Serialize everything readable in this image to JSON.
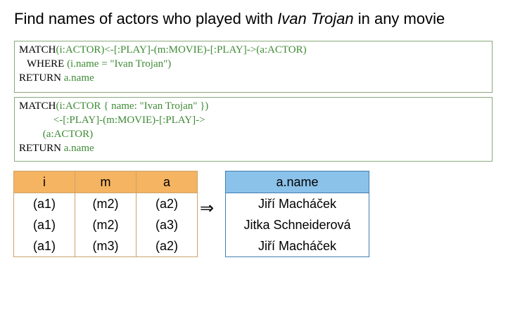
{
  "title": {
    "prefix": "Find names of actors who played with ",
    "name": "Ivan Trojan",
    "suffix": " in any movie"
  },
  "query1": {
    "l1_kw": "MATCH",
    "l1_rest": "(i:ACTOR)<-[:PLAY]-(m:MOVIE)-[:PLAY]->(a:ACTOR)",
    "l2_kw": "   WHERE",
    "l2_rest": " (i.name = \"Ivan Trojan\")",
    "l3_kw": "RETURN",
    "l3_rest": " a.name"
  },
  "query2": {
    "l1_kw": "MATCH",
    "l1_rest": "(i:ACTOR { name: \"Ivan Trojan\" })",
    "l2_rest": "             <-[:PLAY]-(m:MOVIE)-[:PLAY]->",
    "l3_rest": "         (a:ACTOR)",
    "l4_kw": "RETURN",
    "l4_rest": " a.name"
  },
  "bindings": {
    "headers": [
      "i",
      "m",
      "a"
    ],
    "rows": [
      [
        "(a1)",
        "(m2)",
        "(a2)"
      ],
      [
        "(a1)",
        "(m2)",
        "(a3)"
      ],
      [
        "(a1)",
        "(m3)",
        "(a2)"
      ]
    ]
  },
  "arrow": "⇒",
  "result": {
    "header": "a.name",
    "rows": [
      "Jiří Macháček",
      "Jitka Schneiderová",
      "Jiří Macháček"
    ]
  }
}
